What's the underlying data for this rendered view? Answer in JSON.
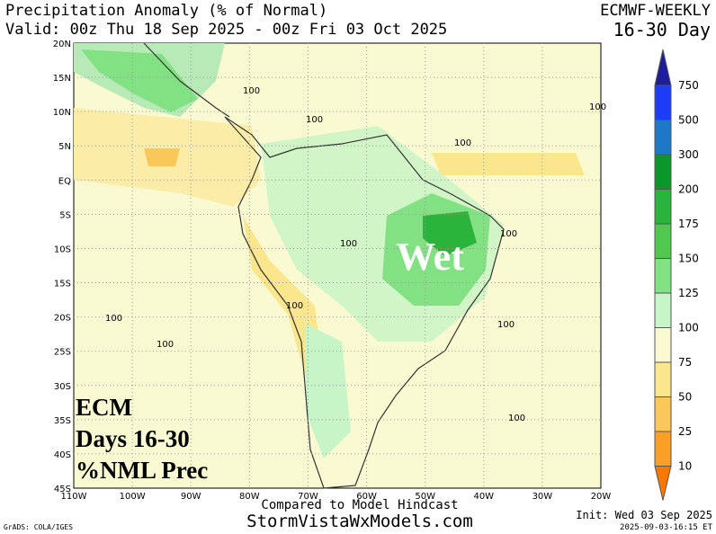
{
  "header": {
    "title": "Precipitation Anomaly (% of Normal)",
    "valid": "Valid: 00z Thu 18 Sep 2025 - 00z Fri 03 Oct 2025",
    "model": "ECMWF-WEEKLY",
    "period": "16-30 Day"
  },
  "map": {
    "lat_labels": [
      "20N",
      "15N",
      "10N",
      "5N",
      "EQ",
      "5S",
      "10S",
      "15S",
      "20S",
      "25S",
      "30S",
      "35S",
      "40S",
      "45S"
    ],
    "lon_labels": [
      "110W",
      "100W",
      "90W",
      "80W",
      "70W",
      "60W",
      "50W",
      "40W",
      "30W",
      "20W"
    ],
    "contour_labels": [
      "100",
      "100",
      "100",
      "100",
      "100",
      "100",
      "100",
      "100",
      "100",
      "100",
      "100"
    ],
    "annotation": "Wet",
    "stamp": [
      "ECM",
      "Days 16-30",
      "%NML Prec"
    ]
  },
  "colorbar": {
    "levels": [
      {
        "label": "750",
        "color": "#1c3cf5"
      },
      {
        "label": "500",
        "color": "#1e78c8"
      },
      {
        "label": "300",
        "color": "#0a9628"
      },
      {
        "label": "200",
        "color": "#2ab43c"
      },
      {
        "label": "175",
        "color": "#50c850"
      },
      {
        "label": "150",
        "color": "#82e182"
      },
      {
        "label": "125",
        "color": "#c8f5c8"
      },
      {
        "label": "100",
        "color": "#fafad2"
      },
      {
        "label": "75",
        "color": "#fae68c"
      },
      {
        "label": "50",
        "color": "#fac85a"
      },
      {
        "label": "25",
        "color": "#faa028"
      },
      {
        "label": "10",
        "color": "#fa7800"
      }
    ],
    "top_color": "#1e1e9a"
  },
  "footer": {
    "hindcast": "Compared to Model Hindcast",
    "site": "StormVistaWxModels.com",
    "init": "Init: Wed 03 Sep 2025",
    "timestamp": "2025-09-03-16:15 ET",
    "credit": "GrADS: COLA/IGES"
  }
}
